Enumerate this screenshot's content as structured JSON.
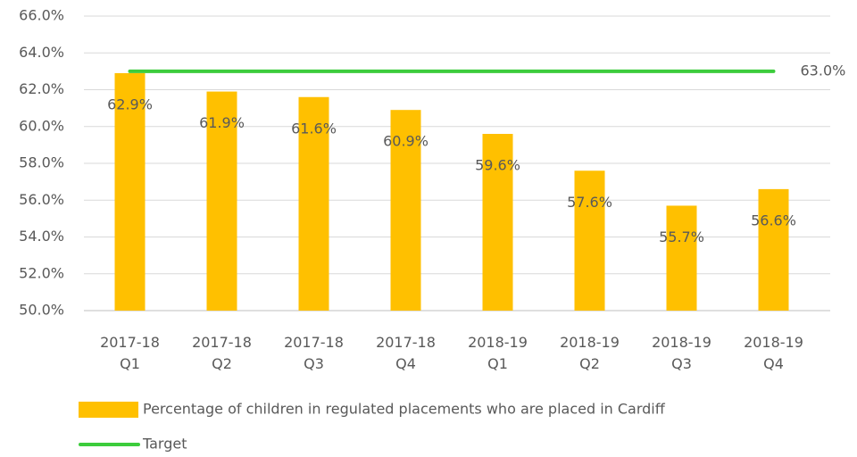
{
  "chart_data": {
    "type": "bar",
    "categories": [
      "2017-18 Q1",
      "2017-18 Q2",
      "2017-18 Q3",
      "2017-18 Q4",
      "2018-19 Q1",
      "2018-19 Q2",
      "2018-19 Q3",
      "2018-19 Q4"
    ],
    "series": [
      {
        "name": "Percentage of children in regulated placements who are placed in Cardiff",
        "type": "bar",
        "color": "#ffc000",
        "values": [
          62.9,
          61.9,
          61.6,
          60.9,
          59.6,
          57.6,
          55.7,
          56.6
        ],
        "value_labels": [
          "62.9%",
          "61.9%",
          "61.6%",
          "60.9%",
          "59.6%",
          "57.6%",
          "55.7%",
          "56.6%"
        ]
      },
      {
        "name": "Target",
        "type": "line",
        "color": "#3ccc3c",
        "values": [
          63,
          63,
          63,
          63,
          63,
          63,
          63,
          63
        ],
        "value_labels": [
          null,
          null,
          null,
          null,
          null,
          null,
          null,
          "63.0%"
        ]
      }
    ],
    "ylim": [
      50,
      66
    ],
    "yticks": [
      {
        "value": 50,
        "label": "50.0%"
      },
      {
        "value": 52,
        "label": "52.0%"
      },
      {
        "value": 54,
        "label": "54.0%"
      },
      {
        "value": 56,
        "label": "56.0%"
      },
      {
        "value": 58,
        "label": "58.0%"
      },
      {
        "value": 60,
        "label": "60.0%"
      },
      {
        "value": 62,
        "label": "62.0%"
      },
      {
        "value": 64,
        "label": "64.0%"
      },
      {
        "value": 66,
        "label": "66.0%"
      }
    ],
    "grid": true,
    "legend": "bottom"
  }
}
